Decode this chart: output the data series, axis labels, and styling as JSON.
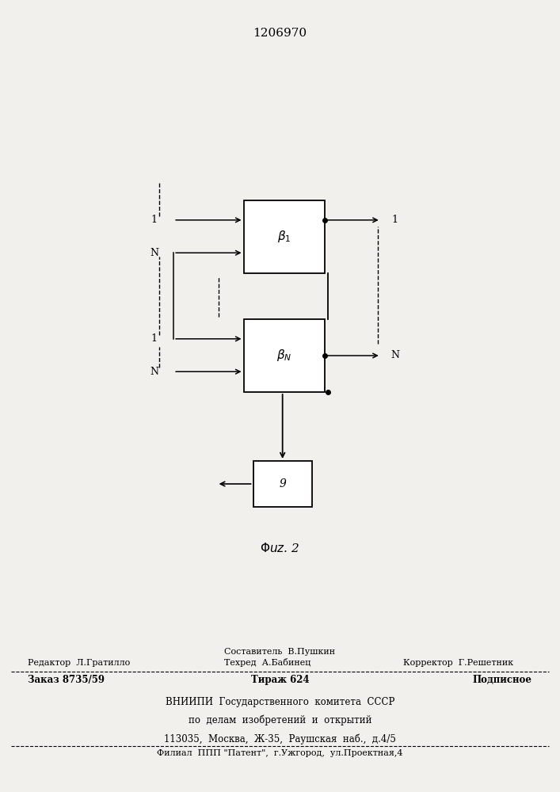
{
  "title": "1206970",
  "footer_line1": "Составитель  В.Пушкин",
  "footer_line2_left": "Редактор  Л.Гратилло",
  "footer_line2_center": "Техред  А.Бабинец",
  "footer_line2_right": "Корректор  Г.Решетник",
  "footer_line3_left": "Заказ 8735/59",
  "footer_line3_center": "Тираж 624",
  "footer_line3_right": "Подписное",
  "footer_line4": "ВНИИПИ  Государственного  комитета  СССР",
  "footer_line5": "по  делам  изобретений  и  открытий",
  "footer_line6": "113035,  Москва,  Ж-35,  Раушская  наб.,  д.4/5",
  "footer_line7": "Филиал  ППП \"Патент\",  г.Ужгород,  ул.Проектная,4"
}
